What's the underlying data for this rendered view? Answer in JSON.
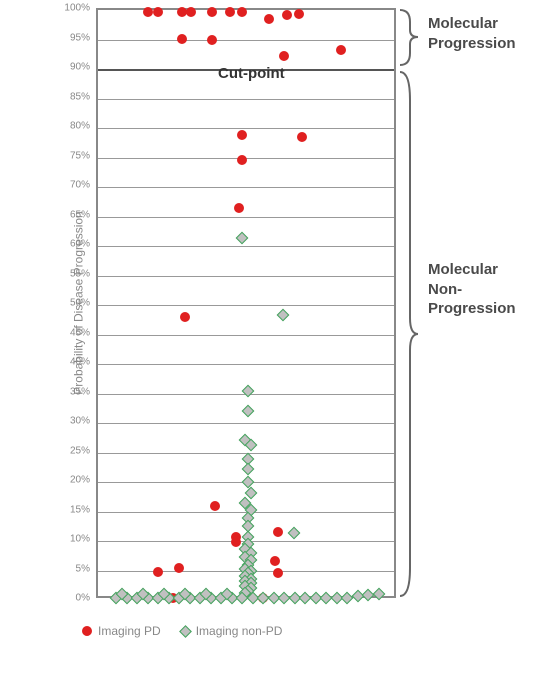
{
  "chart": {
    "type": "scatter",
    "ylabel": "Probability of Disease Progression",
    "ylim": [
      0,
      100
    ],
    "ytick_step": 5,
    "ytick_suffix": "%",
    "background_color": "#ffffff",
    "grid_color": "#999999",
    "border_color": "#888888",
    "axis_text_color": "#888888",
    "cutpoint": {
      "value": 90,
      "label": "Cut-point",
      "line_color": "#555555"
    },
    "annotations": {
      "upper": {
        "line1": "Molecular",
        "line2": "Progression"
      },
      "lower": {
        "line1": "Molecular",
        "line2": "Non-Progression"
      }
    },
    "series": [
      {
        "name": "Imaging PD",
        "marker": "circle",
        "fill_color": "#e02020",
        "border_color": "#e02020",
        "size": 10,
        "points": [
          {
            "x": 0.165,
            "y": 99.6
          },
          {
            "x": 0.2,
            "y": 99.6
          },
          {
            "x": 0.28,
            "y": 99.6
          },
          {
            "x": 0.31,
            "y": 99.6
          },
          {
            "x": 0.38,
            "y": 99.6
          },
          {
            "x": 0.44,
            "y": 99.6
          },
          {
            "x": 0.48,
            "y": 99.6
          },
          {
            "x": 0.63,
            "y": 99.2
          },
          {
            "x": 0.67,
            "y": 99.3
          },
          {
            "x": 0.57,
            "y": 98.4
          },
          {
            "x": 0.28,
            "y": 95.1
          },
          {
            "x": 0.38,
            "y": 94.9
          },
          {
            "x": 0.62,
            "y": 92.2
          },
          {
            "x": 0.81,
            "y": 93.2
          },
          {
            "x": 0.48,
            "y": 78.8
          },
          {
            "x": 0.68,
            "y": 78.4
          },
          {
            "x": 0.48,
            "y": 74.6
          },
          {
            "x": 0.47,
            "y": 66.5
          },
          {
            "x": 0.29,
            "y": 48.0
          },
          {
            "x": 0.39,
            "y": 15.9
          },
          {
            "x": 0.6,
            "y": 11.5
          },
          {
            "x": 0.46,
            "y": 10.6
          },
          {
            "x": 0.46,
            "y": 9.9
          },
          {
            "x": 0.59,
            "y": 6.6
          },
          {
            "x": 0.6,
            "y": 4.5
          },
          {
            "x": 0.2,
            "y": 4.7
          },
          {
            "x": 0.27,
            "y": 5.5
          },
          {
            "x": 0.25,
            "y": 0.3
          },
          {
            "x": 0.55,
            "y": 0.4
          }
        ]
      },
      {
        "name": "Imaging non-PD",
        "marker": "diamond",
        "fill_color": "#c0c0c0",
        "border_color": "#3fa35a",
        "size": 9,
        "points": [
          {
            "x": 0.48,
            "y": 61.3
          },
          {
            "x": 0.615,
            "y": 48.3
          },
          {
            "x": 0.5,
            "y": 35.5
          },
          {
            "x": 0.5,
            "y": 32.0
          },
          {
            "x": 0.49,
            "y": 27.1
          },
          {
            "x": 0.51,
            "y": 26.3
          },
          {
            "x": 0.5,
            "y": 23.9
          },
          {
            "x": 0.5,
            "y": 22.2
          },
          {
            "x": 0.5,
            "y": 20.0
          },
          {
            "x": 0.51,
            "y": 18.2
          },
          {
            "x": 0.49,
            "y": 16.5
          },
          {
            "x": 0.51,
            "y": 15.2
          },
          {
            "x": 0.5,
            "y": 13.9
          },
          {
            "x": 0.5,
            "y": 12.6
          },
          {
            "x": 0.653,
            "y": 11.3
          },
          {
            "x": 0.5,
            "y": 10.6
          },
          {
            "x": 0.5,
            "y": 9.5
          },
          {
            "x": 0.49,
            "y": 8.6
          },
          {
            "x": 0.51,
            "y": 8.0
          },
          {
            "x": 0.49,
            "y": 7.3
          },
          {
            "x": 0.51,
            "y": 6.7
          },
          {
            "x": 0.5,
            "y": 5.9
          },
          {
            "x": 0.49,
            "y": 5.3
          },
          {
            "x": 0.51,
            "y": 5.0
          },
          {
            "x": 0.5,
            "y": 4.5
          },
          {
            "x": 0.49,
            "y": 4.0
          },
          {
            "x": 0.51,
            "y": 3.6
          },
          {
            "x": 0.49,
            "y": 3.2
          },
          {
            "x": 0.51,
            "y": 2.8
          },
          {
            "x": 0.49,
            "y": 2.4
          },
          {
            "x": 0.51,
            "y": 2.0
          },
          {
            "x": 0.5,
            "y": 1.6
          },
          {
            "x": 0.49,
            "y": 1.2
          },
          {
            "x": 0.06,
            "y": 0.4
          },
          {
            "x": 0.095,
            "y": 0.4
          },
          {
            "x": 0.13,
            "y": 0.4
          },
          {
            "x": 0.165,
            "y": 0.4
          },
          {
            "x": 0.2,
            "y": 0.4
          },
          {
            "x": 0.235,
            "y": 0.4
          },
          {
            "x": 0.27,
            "y": 0.4
          },
          {
            "x": 0.305,
            "y": 0.4
          },
          {
            "x": 0.34,
            "y": 0.4
          },
          {
            "x": 0.375,
            "y": 0.4
          },
          {
            "x": 0.41,
            "y": 0.4
          },
          {
            "x": 0.445,
            "y": 0.4
          },
          {
            "x": 0.48,
            "y": 0.4
          },
          {
            "x": 0.515,
            "y": 0.4
          },
          {
            "x": 0.55,
            "y": 0.4
          },
          {
            "x": 0.585,
            "y": 0.4
          },
          {
            "x": 0.62,
            "y": 0.4
          },
          {
            "x": 0.655,
            "y": 0.4
          },
          {
            "x": 0.69,
            "y": 0.4
          },
          {
            "x": 0.725,
            "y": 0.4
          },
          {
            "x": 0.76,
            "y": 0.4
          },
          {
            "x": 0.795,
            "y": 0.4
          },
          {
            "x": 0.83,
            "y": 0.4
          },
          {
            "x": 0.865,
            "y": 0.6
          },
          {
            "x": 0.9,
            "y": 0.8
          },
          {
            "x": 0.935,
            "y": 1.0
          },
          {
            "x": 0.08,
            "y": 1.0
          },
          {
            "x": 0.15,
            "y": 1.0
          },
          {
            "x": 0.22,
            "y": 1.0
          },
          {
            "x": 0.29,
            "y": 1.0
          },
          {
            "x": 0.36,
            "y": 1.0
          },
          {
            "x": 0.43,
            "y": 1.0
          }
        ]
      }
    ],
    "legend": {
      "items": [
        {
          "label": "Imaging PD",
          "series_index": 0
        },
        {
          "label": "Imaging non-PD",
          "series_index": 1
        }
      ]
    }
  }
}
